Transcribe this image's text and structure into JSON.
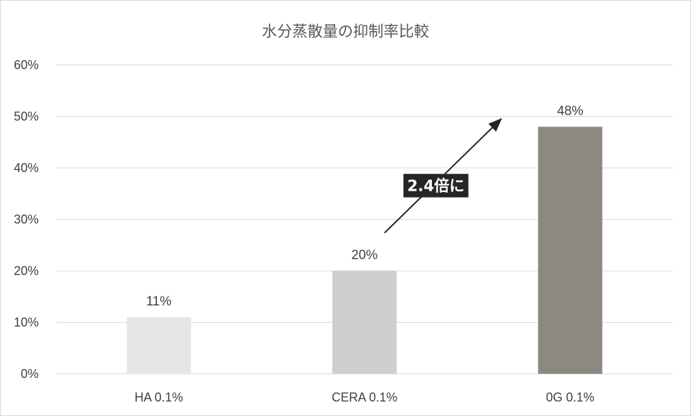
{
  "chart_data": {
    "type": "bar",
    "title": "水分蒸散量の抑制率比較",
    "xlabel": "",
    "ylabel": "",
    "categories": [
      "HA 0.1%",
      "CERA 0.1%",
      "0G 0.1%"
    ],
    "values": [
      11,
      20,
      48
    ],
    "data_labels": [
      "11%",
      "20%",
      "48%"
    ],
    "bar_colors": [
      "#e7e6e6",
      "#d0cecc",
      "#8c8882"
    ],
    "ylim": [
      0,
      60
    ],
    "y_ticks": [
      "0%",
      "10%",
      "20%",
      "30%",
      "40%",
      "50%",
      "60%"
    ],
    "grid": true,
    "legend": "none",
    "annotation": {
      "text": "2.4倍に",
      "from_category": "CERA 0.1%",
      "to_category": "0G 0.1%",
      "arrow_color": "#1f2430",
      "box_color": "#262626"
    }
  },
  "colors": {
    "gridline": "#d9d9d9",
    "axis_text": "#404040",
    "title_text": "#595959"
  }
}
